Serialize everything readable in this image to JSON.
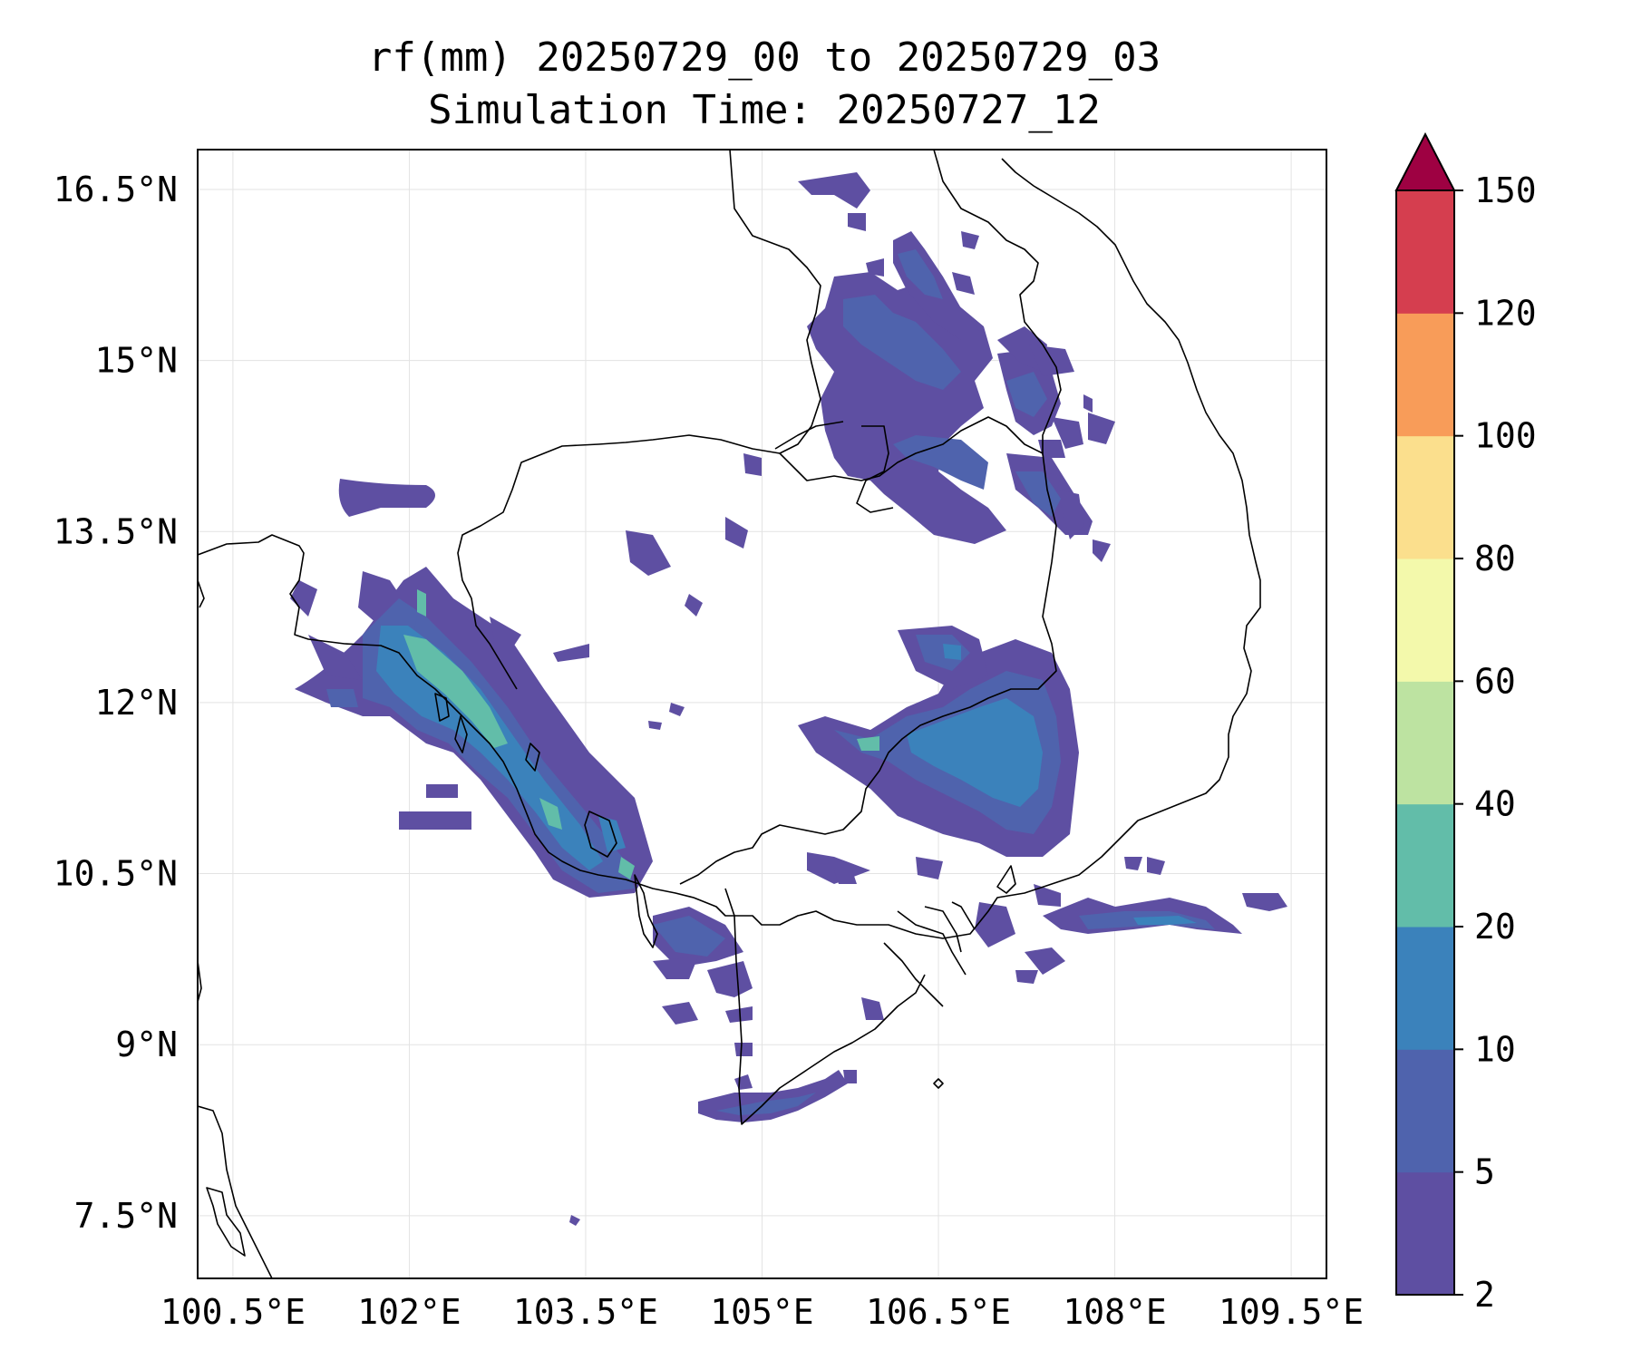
{
  "title": {
    "line1": "rf(mm) 20250729_00 to 20250729_03",
    "line2": "Simulation Time: 20250727_12"
  },
  "map": {
    "lon_range": [
      100.2,
      109.8
    ],
    "lat_range": [
      6.95,
      16.85
    ],
    "lon_ticks": [
      100.5,
      102,
      103.5,
      105,
      106.5,
      108,
      109.5
    ],
    "lon_tick_labels": [
      "100.5°E",
      "102°E",
      "103.5°E",
      "105°E",
      "106.5°E",
      "108°E",
      "109.5°E"
    ],
    "lat_ticks": [
      16.5,
      15,
      13.5,
      12,
      10.5,
      9,
      7.5
    ],
    "lat_tick_labels": [
      "16.5°N",
      "15°N",
      "13.5°N",
      "12°N",
      "10.5°N",
      "9°N",
      "7.5°N"
    ],
    "gridlines": true
  },
  "colorbar": {
    "levels": [
      2,
      5,
      10,
      20,
      40,
      60,
      80,
      100,
      120,
      150
    ],
    "level_labels": [
      "2",
      "5",
      "10",
      "20",
      "40",
      "60",
      "80",
      "100",
      "120",
      "150"
    ],
    "colors": [
      "#5e4fa2",
      "#4f63ad",
      "#3b82bb",
      "#62bda9",
      "#bde3a1",
      "#f3f9ab",
      "#fbdf8d",
      "#f89c59",
      "#d53e4f"
    ],
    "extend_color": "#9e0142",
    "extend": "max"
  },
  "chart_data": {
    "type": "heatmap",
    "variable": "rf(mm)",
    "units": "mm",
    "levels": [
      2,
      5,
      10,
      20,
      40,
      60,
      80,
      100,
      120,
      150
    ],
    "features": [
      {
        "lon": 102.35,
        "lat": 12.55,
        "value": 30
      },
      {
        "lon": 102.65,
        "lat": 11.9,
        "value": 30
      },
      {
        "lon": 103.5,
        "lat": 10.75,
        "value": 25
      },
      {
        "lon": 106.1,
        "lat": 11.75,
        "value": 25
      },
      {
        "lon": 106.9,
        "lat": 11.6,
        "value": 12
      },
      {
        "lon": 106.4,
        "lat": 14.1,
        "value": 8
      },
      {
        "lon": 106.0,
        "lat": 14.8,
        "value": 8
      },
      {
        "lon": 108.7,
        "lat": 10.3,
        "value": 12
      },
      {
        "lon": 105.0,
        "lat": 8.5,
        "value": 6
      }
    ]
  }
}
